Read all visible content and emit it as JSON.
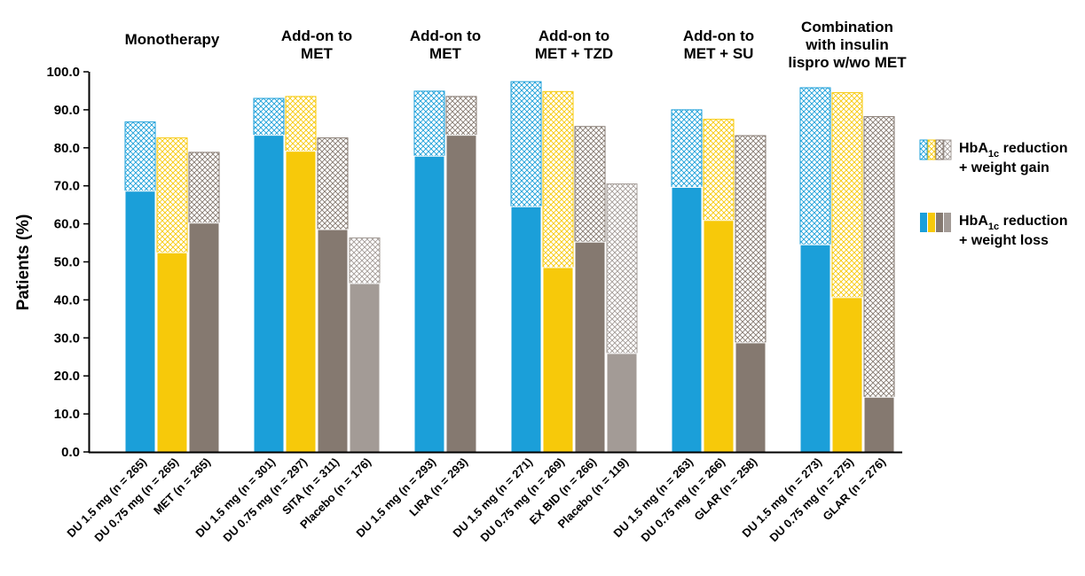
{
  "chart_data": {
    "type": "bar",
    "ylabel": "Patients (%)",
    "ylim": [
      0,
      100
    ],
    "ytick_labels": [
      "0.0",
      "10.0",
      "20.0",
      "30.0",
      "40.0",
      "50.0",
      "60.0",
      "70.0",
      "80.0",
      "90.0",
      "100.0"
    ],
    "colors": {
      "DU_1_5": "#1b9fd9",
      "DU_0_75": "#f7c90a",
      "comparator": "#857970",
      "placebo": "#a39b96",
      "frame": "#000000"
    },
    "groups": [
      {
        "title_lines": [
          "Monotherapy"
        ],
        "bars": [
          {
            "label": "DU 1.5 mg (n = 265)",
            "color_key": "DU_1_5",
            "weight_loss": 68.6,
            "weight_gain": 18.2
          },
          {
            "label": "DU 0.75 mg (n = 265)",
            "color_key": "DU_0_75",
            "weight_loss": 52.4,
            "weight_gain": 30.2
          },
          {
            "label": "MET (n = 265)",
            "color_key": "comparator",
            "weight_loss": 60.2,
            "weight_gain": 18.6
          }
        ]
      },
      {
        "title_lines": [
          "Add-on to",
          "MET"
        ],
        "bars": [
          {
            "label": "DU 1.5 mg (n = 301)",
            "color_key": "DU_1_5",
            "weight_loss": 83.3,
            "weight_gain": 9.7
          },
          {
            "label": "DU 0.75 mg (n = 297)",
            "color_key": "DU_0_75",
            "weight_loss": 79.1,
            "weight_gain": 14.4
          },
          {
            "label": "SITA (n = 311)",
            "color_key": "comparator",
            "weight_loss": 58.5,
            "weight_gain": 24.1
          },
          {
            "label": "Placebo (n = 176)",
            "color_key": "placebo",
            "weight_loss": 44.3,
            "weight_gain": 12.0
          }
        ]
      },
      {
        "title_lines": [
          "Add-on to",
          "MET"
        ],
        "bars": [
          {
            "label": "DU 1.5 mg (n = 293)",
            "color_key": "DU_1_5",
            "weight_loss": 77.8,
            "weight_gain": 17.1
          },
          {
            "label": "LIRA (n = 293)",
            "color_key": "comparator",
            "weight_loss": 83.3,
            "weight_gain": 10.2
          }
        ]
      },
      {
        "title_lines": [
          "Add-on to",
          "MET + TZD"
        ],
        "bars": [
          {
            "label": "DU 1.5 mg (n = 271)",
            "color_key": "DU_1_5",
            "weight_loss": 64.5,
            "weight_gain": 32.9
          },
          {
            "label": "DU 0.75 mg (n = 269)",
            "color_key": "DU_0_75",
            "weight_loss": 48.5,
            "weight_gain": 46.3
          },
          {
            "label": "EX BID (n = 266)",
            "color_key": "comparator",
            "weight_loss": 55.2,
            "weight_gain": 30.4
          },
          {
            "label": "Placebo (n = 119)",
            "color_key": "placebo",
            "weight_loss": 25.9,
            "weight_gain": 44.6
          }
        ]
      },
      {
        "title_lines": [
          "Add-on to",
          "MET + SU"
        ],
        "bars": [
          {
            "label": "DU 1.5 mg (n = 263)",
            "color_key": "DU_1_5",
            "weight_loss": 69.6,
            "weight_gain": 20.4
          },
          {
            "label": "DU 0.75 mg (n = 266)",
            "color_key": "DU_0_75",
            "weight_loss": 60.9,
            "weight_gain": 26.6
          },
          {
            "label": "GLAR (n = 258)",
            "color_key": "comparator",
            "weight_loss": 28.7,
            "weight_gain": 54.5
          }
        ]
      },
      {
        "title_lines": [
          "Combination",
          "with insulin",
          "lispro w/wo MET"
        ],
        "bars": [
          {
            "label": "DU 1.5 mg (n = 273)",
            "color_key": "DU_1_5",
            "weight_loss": 54.5,
            "weight_gain": 41.3
          },
          {
            "label": "DU 0.75 mg (n = 275)",
            "color_key": "DU_0_75",
            "weight_loss": 40.6,
            "weight_gain": 53.9
          },
          {
            "label": "GLAR (n = 276)",
            "color_key": "comparator",
            "weight_loss": 14.4,
            "weight_gain": 73.8
          }
        ]
      }
    ],
    "legend": {
      "position": "right",
      "items": [
        {
          "style": "hatched",
          "line1_prefix": "HbA",
          "line1_sub": "1c",
          "line1_suffix": " reduction",
          "line2": "+ weight gain"
        },
        {
          "style": "solid",
          "line1_prefix": "HbA",
          "line1_sub": "1c",
          "line1_suffix": " reduction",
          "line2": "+ weight loss"
        }
      ]
    },
    "grid": false
  }
}
